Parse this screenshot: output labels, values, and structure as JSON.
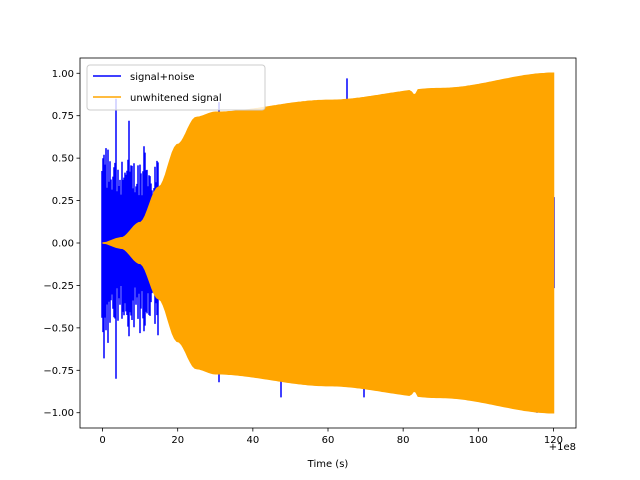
{
  "chart_data": {
    "type": "line",
    "title": "",
    "xlabel": "Time (s)",
    "ylabel": "",
    "x_offset_label": "+1e8",
    "xlim": [
      -6,
      126
    ],
    "ylim": [
      -1.09,
      1.09
    ],
    "xticks": [
      0,
      20,
      40,
      60,
      80,
      100,
      120
    ],
    "yticks": [
      -1.0,
      -0.75,
      -0.5,
      -0.25,
      0.0,
      0.25,
      0.5,
      0.75,
      1.0
    ],
    "xtick_labels": [
      "0",
      "20",
      "40",
      "60",
      "80",
      "100",
      "120"
    ],
    "ytick_labels": [
      "−1.00",
      "−0.75",
      "−0.50",
      "−0.25",
      "0.00",
      "0.25",
      "0.50",
      "0.75",
      "1.00"
    ],
    "grid": false,
    "legend_position": "top-left",
    "series": [
      {
        "name": "signal+noise",
        "color": "#0000ff",
        "x_range": [
          0,
          120
        ],
        "noise_peaks": [
          {
            "x": 0.5,
            "hi": 0.52,
            "lo": -0.68
          },
          {
            "x": 3.5,
            "hi": 0.85,
            "lo": -0.8
          },
          {
            "x": 7.0,
            "hi": 0.72,
            "lo": -0.55
          },
          {
            "x": 11.0,
            "hi": 0.57,
            "lo": -0.52
          },
          {
            "x": 31.0,
            "hi": 0.83,
            "lo": -0.82
          },
          {
            "x": 47.5,
            "hi": 0.77,
            "lo": -0.91
          },
          {
            "x": 65.0,
            "hi": 0.97,
            "lo": -0.84
          },
          {
            "x": 69.5,
            "hi": 0.85,
            "lo": -0.91
          },
          {
            "x": 115.5,
            "hi": 0.94,
            "lo": -1.0
          }
        ]
      },
      {
        "name": "unwhitened signal",
        "color": "#ffa500",
        "x_range": [
          0,
          120
        ],
        "envelope": [
          {
            "x": 0,
            "amp": 0.0
          },
          {
            "x": 5,
            "amp": 0.03
          },
          {
            "x": 10,
            "amp": 0.12
          },
          {
            "x": 15,
            "amp": 0.33
          },
          {
            "x": 20,
            "amp": 0.58
          },
          {
            "x": 25,
            "amp": 0.74
          },
          {
            "x": 30,
            "amp": 0.77
          },
          {
            "x": 60,
            "amp": 0.84
          },
          {
            "x": 90,
            "amp": 0.91
          },
          {
            "x": 120,
            "amp": 1.0
          }
        ]
      }
    ]
  }
}
